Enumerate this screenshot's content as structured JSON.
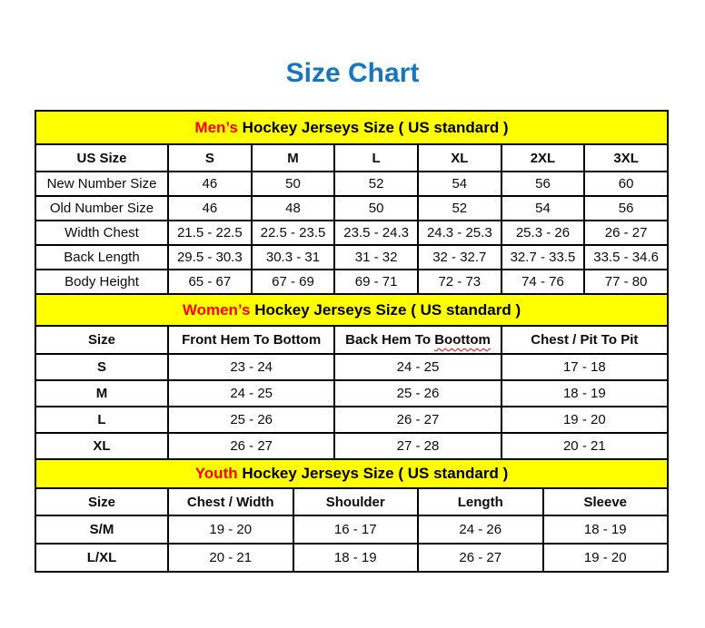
{
  "page": {
    "title": "Size Chart"
  },
  "colors": {
    "title_blue": "#1776c0",
    "band_yellow": "#ffff00",
    "highlight_red": "#ff0000",
    "border_black": "#000000"
  },
  "chart_data": [
    {
      "type": "table",
      "title_highlight": "Men’s",
      "title_rest": " Hockey Jerseys Size ( US standard )",
      "columns": [
        {
          "label": "US Size"
        },
        {
          "label": "S"
        },
        {
          "label": "M"
        },
        {
          "label": "L"
        },
        {
          "label": "XL"
        },
        {
          "label": "2XL"
        },
        {
          "label": "3XL"
        }
      ],
      "rows": [
        {
          "label": "New Number Size",
          "values": [
            "46",
            "50",
            "52",
            "54",
            "56",
            "60"
          ]
        },
        {
          "label": "Old Number Size",
          "values": [
            "46",
            "48",
            "50",
            "52",
            "54",
            "56"
          ]
        },
        {
          "label": "Width Chest",
          "values": [
            "21.5 - 22.5",
            "22.5 - 23.5",
            "23.5 - 24.3",
            "24.3 - 25.3",
            "25.3 - 26",
            "26 - 27"
          ]
        },
        {
          "label": "Back Length",
          "values": [
            "29.5 - 30.3",
            "30.3 - 31",
            "31 - 32",
            "32 - 32.7",
            "32.7 - 33.5",
            "33.5 - 34.6"
          ]
        },
        {
          "label": "Body Height",
          "values": [
            "65 - 67",
            "67 - 69",
            "69 - 71",
            "72 - 73",
            "74 - 76",
            "77 - 80"
          ]
        }
      ]
    },
    {
      "type": "table",
      "title_highlight": "Women’s",
      "title_rest": " Hockey Jerseys Size ( US standard )",
      "columns": [
        {
          "label": "Size"
        },
        {
          "label": "Front Hem To Bottom"
        },
        {
          "label": "Back Hem To Boottom",
          "misspelled_word": "Boottom"
        },
        {
          "label": "Chest / Pit To Pit"
        }
      ],
      "rows": [
        {
          "label": "S",
          "values": [
            "23 - 24",
            "24 - 25",
            "17 - 18"
          ]
        },
        {
          "label": "M",
          "values": [
            "24 - 25",
            "25 - 26",
            "18 - 19"
          ]
        },
        {
          "label": "L",
          "values": [
            "25 - 26",
            "26 - 27",
            "19 - 20"
          ]
        },
        {
          "label": "XL",
          "values": [
            "26 - 27",
            "27 - 28",
            "20 - 21"
          ]
        }
      ]
    },
    {
      "type": "table",
      "title_highlight": "Youth",
      "title_rest": " Hockey Jerseys Size ( US standard )",
      "columns": [
        {
          "label": "Size"
        },
        {
          "label": "Chest / Width"
        },
        {
          "label": "Shoulder"
        },
        {
          "label": "Length"
        },
        {
          "label": "Sleeve"
        }
      ],
      "rows": [
        {
          "label": "S/M",
          "values": [
            "19 - 20",
            "16 - 17",
            "24 - 26",
            "18 - 19"
          ]
        },
        {
          "label": "L/XL",
          "values": [
            "20 - 21",
            "18 - 19",
            "26 - 27",
            "19 - 20"
          ]
        }
      ]
    }
  ]
}
